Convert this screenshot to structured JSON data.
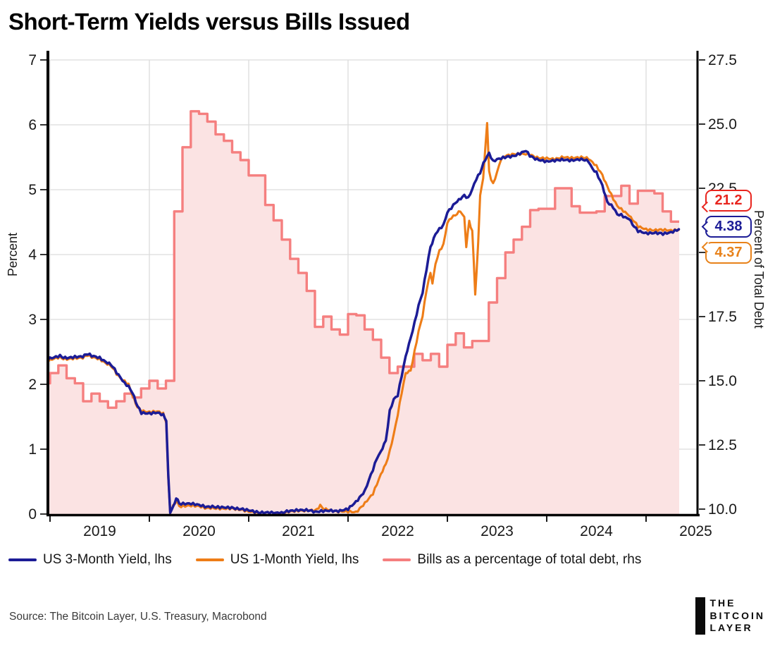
{
  "source": "Source: The Bitcoin Layer, U.S. Treasury, Macrobond",
  "logo": {
    "line1": "THE",
    "line2": "BITCOIN",
    "line3": "LAYER"
  },
  "callouts": [
    {
      "label": "21.2",
      "color": "#e8251e",
      "series": "bills-percent-of-debt"
    },
    {
      "label": "4.38",
      "color": "#1c1c96",
      "series": "us-3-month-yield"
    },
    {
      "label": "4.37",
      "color": "#e8821a",
      "series": "us-1-month-yield"
    }
  ],
  "chart_data": {
    "type": "line",
    "title": "Short-Term Yields versus Bills Issued",
    "grid": true,
    "grid_color": "#dcdcdc",
    "legend_position": "bottom",
    "x_axis": {
      "ticks": [
        2019,
        2020,
        2021,
        2022,
        2023,
        2024,
        2025
      ],
      "labels": [
        "2019",
        "2020",
        "2021",
        "2022",
        "2023",
        "2024",
        "2025"
      ],
      "range_decimal_years": [
        2018.96,
        2025.52
      ]
    },
    "left_axis": {
      "title": "Percent",
      "ticks": [
        0,
        1,
        2,
        3,
        4,
        5,
        6,
        7
      ],
      "min": 0,
      "max": 7
    },
    "right_axis": {
      "title": "Percent of Total Debt",
      "ticks": [
        "10.0",
        "12.5",
        "15.0",
        "17.5",
        "20.0",
        "22.5",
        "25.0",
        "27.5"
      ],
      "min": 10,
      "max": 27.5
    },
    "series": [
      {
        "name": "US 3-Month Yield, lhs",
        "axis": "left",
        "color": "#1c1c96",
        "last_value": 4.38,
        "points": [
          [
            2018.98,
            2.4
          ],
          [
            2019.04,
            2.42
          ],
          [
            2019.1,
            2.44
          ],
          [
            2019.17,
            2.41
          ],
          [
            2019.25,
            2.43
          ],
          [
            2019.33,
            2.44
          ],
          [
            2019.38,
            2.46
          ],
          [
            2019.42,
            2.43
          ],
          [
            2019.5,
            2.4
          ],
          [
            2019.56,
            2.34
          ],
          [
            2019.63,
            2.28
          ],
          [
            2019.67,
            2.18
          ],
          [
            2019.71,
            2.1
          ],
          [
            2019.75,
            2.01
          ],
          [
            2019.79,
            1.96
          ],
          [
            2019.83,
            1.86
          ],
          [
            2019.88,
            1.68
          ],
          [
            2019.92,
            1.57
          ],
          [
            2020.0,
            1.56
          ],
          [
            2020.08,
            1.57
          ],
          [
            2020.14,
            1.53
          ],
          [
            2020.17,
            1.45
          ],
          [
            2020.19,
            0.6
          ],
          [
            2020.21,
            0.03
          ],
          [
            2020.24,
            0.1
          ],
          [
            2020.27,
            0.26
          ],
          [
            2020.3,
            0.15
          ],
          [
            2020.42,
            0.15
          ],
          [
            2020.5,
            0.13
          ],
          [
            2020.58,
            0.1
          ],
          [
            2020.67,
            0.11
          ],
          [
            2020.75,
            0.1
          ],
          [
            2020.83,
            0.09
          ],
          [
            2020.92,
            0.09
          ],
          [
            2021.0,
            0.07
          ],
          [
            2021.08,
            0.04
          ],
          [
            2021.17,
            0.02
          ],
          [
            2021.25,
            0.02
          ],
          [
            2021.33,
            0.02
          ],
          [
            2021.42,
            0.04
          ],
          [
            2021.5,
            0.05
          ],
          [
            2021.58,
            0.05
          ],
          [
            2021.67,
            0.04
          ],
          [
            2021.75,
            0.05
          ],
          [
            2021.83,
            0.05
          ],
          [
            2021.92,
            0.06
          ],
          [
            2022.0,
            0.09
          ],
          [
            2022.08,
            0.2
          ],
          [
            2022.17,
            0.35
          ],
          [
            2022.21,
            0.52
          ],
          [
            2022.25,
            0.68
          ],
          [
            2022.29,
            0.86
          ],
          [
            2022.33,
            0.96
          ],
          [
            2022.38,
            1.12
          ],
          [
            2022.42,
            1.58
          ],
          [
            2022.46,
            1.76
          ],
          [
            2022.5,
            1.82
          ],
          [
            2022.54,
            2.12
          ],
          [
            2022.58,
            2.42
          ],
          [
            2022.63,
            2.72
          ],
          [
            2022.67,
            2.96
          ],
          [
            2022.71,
            3.22
          ],
          [
            2022.75,
            3.42
          ],
          [
            2022.79,
            3.78
          ],
          [
            2022.83,
            4.12
          ],
          [
            2022.88,
            4.32
          ],
          [
            2022.92,
            4.4
          ],
          [
            2022.96,
            4.46
          ],
          [
            2023.0,
            4.66
          ],
          [
            2023.04,
            4.73
          ],
          [
            2023.08,
            4.81
          ],
          [
            2023.17,
            4.9
          ],
          [
            2023.21,
            4.86
          ],
          [
            2023.25,
            5.0
          ],
          [
            2023.29,
            5.16
          ],
          [
            2023.33,
            5.26
          ],
          [
            2023.38,
            5.46
          ],
          [
            2023.42,
            5.56
          ],
          [
            2023.46,
            5.43
          ],
          [
            2023.5,
            5.46
          ],
          [
            2023.58,
            5.49
          ],
          [
            2023.67,
            5.53
          ],
          [
            2023.75,
            5.58
          ],
          [
            2023.79,
            5.61
          ],
          [
            2023.83,
            5.53
          ],
          [
            2023.92,
            5.46
          ],
          [
            2024.0,
            5.44
          ],
          [
            2024.08,
            5.46
          ],
          [
            2024.17,
            5.45
          ],
          [
            2024.25,
            5.44
          ],
          [
            2024.33,
            5.46
          ],
          [
            2024.42,
            5.44
          ],
          [
            2024.46,
            5.32
          ],
          [
            2024.5,
            5.26
          ],
          [
            2024.56,
            5.06
          ],
          [
            2024.61,
            4.82
          ],
          [
            2024.67,
            4.74
          ],
          [
            2024.71,
            4.63
          ],
          [
            2024.75,
            4.62
          ],
          [
            2024.79,
            4.58
          ],
          [
            2024.83,
            4.56
          ],
          [
            2024.88,
            4.43
          ],
          [
            2024.92,
            4.36
          ],
          [
            2025.0,
            4.33
          ],
          [
            2025.08,
            4.34
          ],
          [
            2025.17,
            4.31
          ],
          [
            2025.25,
            4.33
          ],
          [
            2025.33,
            4.38
          ]
        ]
      },
      {
        "name": "US 1-Month Yield, lhs",
        "axis": "left",
        "color": "#ee7d17",
        "last_value": 4.37,
        "points": [
          [
            2018.98,
            2.37
          ],
          [
            2019.04,
            2.4
          ],
          [
            2019.1,
            2.42
          ],
          [
            2019.17,
            2.39
          ],
          [
            2019.25,
            2.41
          ],
          [
            2019.33,
            2.42
          ],
          [
            2019.38,
            2.44
          ],
          [
            2019.42,
            2.41
          ],
          [
            2019.5,
            2.38
          ],
          [
            2019.56,
            2.32
          ],
          [
            2019.63,
            2.26
          ],
          [
            2019.67,
            2.16
          ],
          [
            2019.71,
            2.09
          ],
          [
            2019.75,
            2.04
          ],
          [
            2019.79,
            1.99
          ],
          [
            2019.83,
            1.82
          ],
          [
            2019.88,
            1.66
          ],
          [
            2019.92,
            1.6
          ],
          [
            2020.0,
            1.58
          ],
          [
            2020.08,
            1.59
          ],
          [
            2020.14,
            1.55
          ],
          [
            2020.17,
            1.42
          ],
          [
            2020.19,
            0.55
          ],
          [
            2020.21,
            0.02
          ],
          [
            2020.24,
            0.12
          ],
          [
            2020.27,
            0.21
          ],
          [
            2020.3,
            0.11
          ],
          [
            2020.42,
            0.12
          ],
          [
            2020.5,
            0.11
          ],
          [
            2020.58,
            0.08
          ],
          [
            2020.67,
            0.09
          ],
          [
            2020.75,
            0.08
          ],
          [
            2020.83,
            0.08
          ],
          [
            2020.92,
            0.08
          ],
          [
            2021.0,
            0.05
          ],
          [
            2021.08,
            0.03
          ],
          [
            2021.17,
            0.02
          ],
          [
            2021.25,
            0.02
          ],
          [
            2021.33,
            0.01
          ],
          [
            2021.42,
            0.03
          ],
          [
            2021.5,
            0.04
          ],
          [
            2021.58,
            0.04
          ],
          [
            2021.67,
            0.06
          ],
          [
            2021.72,
            0.13
          ],
          [
            2021.76,
            0.07
          ],
          [
            2021.83,
            0.05
          ],
          [
            2021.92,
            0.05
          ],
          [
            2022.0,
            0.05
          ],
          [
            2022.08,
            0.04
          ],
          [
            2022.17,
            0.16
          ],
          [
            2022.25,
            0.31
          ],
          [
            2022.33,
            0.61
          ],
          [
            2022.38,
            0.76
          ],
          [
            2022.42,
            0.96
          ],
          [
            2022.46,
            1.22
          ],
          [
            2022.5,
            1.52
          ],
          [
            2022.54,
            1.86
          ],
          [
            2022.58,
            2.16
          ],
          [
            2022.63,
            2.22
          ],
          [
            2022.67,
            2.52
          ],
          [
            2022.71,
            2.82
          ],
          [
            2022.75,
            3.06
          ],
          [
            2022.79,
            3.46
          ],
          [
            2022.83,
            3.72
          ],
          [
            2022.85,
            3.56
          ],
          [
            2022.88,
            3.86
          ],
          [
            2022.92,
            4.06
          ],
          [
            2022.96,
            4.16
          ],
          [
            2023.0,
            4.5
          ],
          [
            2023.04,
            4.58
          ],
          [
            2023.08,
            4.62
          ],
          [
            2023.13,
            4.66
          ],
          [
            2023.17,
            4.56
          ],
          [
            2023.19,
            4.12
          ],
          [
            2023.22,
            4.52
          ],
          [
            2023.25,
            4.36
          ],
          [
            2023.28,
            3.4
          ],
          [
            2023.31,
            4.16
          ],
          [
            2023.33,
            4.92
          ],
          [
            2023.36,
            5.16
          ],
          [
            2023.38,
            5.62
          ],
          [
            2023.4,
            6.02
          ],
          [
            2023.42,
            5.28
          ],
          [
            2023.44,
            5.16
          ],
          [
            2023.46,
            5.08
          ],
          [
            2023.5,
            5.26
          ],
          [
            2023.54,
            5.46
          ],
          [
            2023.58,
            5.51
          ],
          [
            2023.67,
            5.56
          ],
          [
            2023.75,
            5.56
          ],
          [
            2023.83,
            5.55
          ],
          [
            2023.92,
            5.49
          ],
          [
            2024.0,
            5.49
          ],
          [
            2024.08,
            5.48
          ],
          [
            2024.17,
            5.49
          ],
          [
            2024.25,
            5.48
          ],
          [
            2024.33,
            5.49
          ],
          [
            2024.42,
            5.48
          ],
          [
            2024.46,
            5.42
          ],
          [
            2024.5,
            5.36
          ],
          [
            2024.56,
            5.22
          ],
          [
            2024.61,
            5.06
          ],
          [
            2024.67,
            4.87
          ],
          [
            2024.71,
            4.76
          ],
          [
            2024.75,
            4.71
          ],
          [
            2024.79,
            4.66
          ],
          [
            2024.83,
            4.61
          ],
          [
            2024.88,
            4.51
          ],
          [
            2024.92,
            4.43
          ],
          [
            2025.0,
            4.39
          ],
          [
            2025.08,
            4.38
          ],
          [
            2025.17,
            4.37
          ],
          [
            2025.25,
            4.36
          ],
          [
            2025.33,
            4.37
          ]
        ]
      },
      {
        "name": "Bills as a percentage of total debt, rhs",
        "axis": "right",
        "type": "step-area",
        "color": "#f57f7f",
        "fill": "#fbe3e3",
        "last_value": 21.2,
        "start_decimal_year": 2018.917,
        "step_years": 0.08333,
        "values": [
          14.9,
          15.3,
          15.6,
          15.1,
          14.9,
          14.2,
          14.5,
          14.2,
          13.95,
          14.2,
          14.5,
          14.35,
          14.7,
          15.0,
          14.7,
          15.0,
          21.6,
          24.1,
          25.5,
          25.4,
          25.1,
          24.6,
          24.35,
          23.9,
          23.6,
          23.0,
          23.0,
          21.85,
          21.25,
          20.5,
          19.75,
          19.2,
          18.5,
          17.1,
          17.5,
          17.0,
          16.8,
          17.6,
          17.55,
          17.0,
          16.6,
          15.9,
          15.3,
          15.55,
          15.55,
          16.05,
          15.8,
          16.05,
          15.55,
          16.4,
          16.85,
          16.3,
          16.55,
          16.55,
          18.05,
          19.0,
          20.0,
          20.5,
          21.0,
          21.65,
          21.7,
          21.7,
          22.5,
          22.5,
          21.8,
          21.55,
          21.55,
          21.6,
          22.2,
          22.2,
          22.6,
          21.9,
          22.4,
          22.4,
          22.3,
          21.6,
          21.2
        ]
      }
    ]
  }
}
